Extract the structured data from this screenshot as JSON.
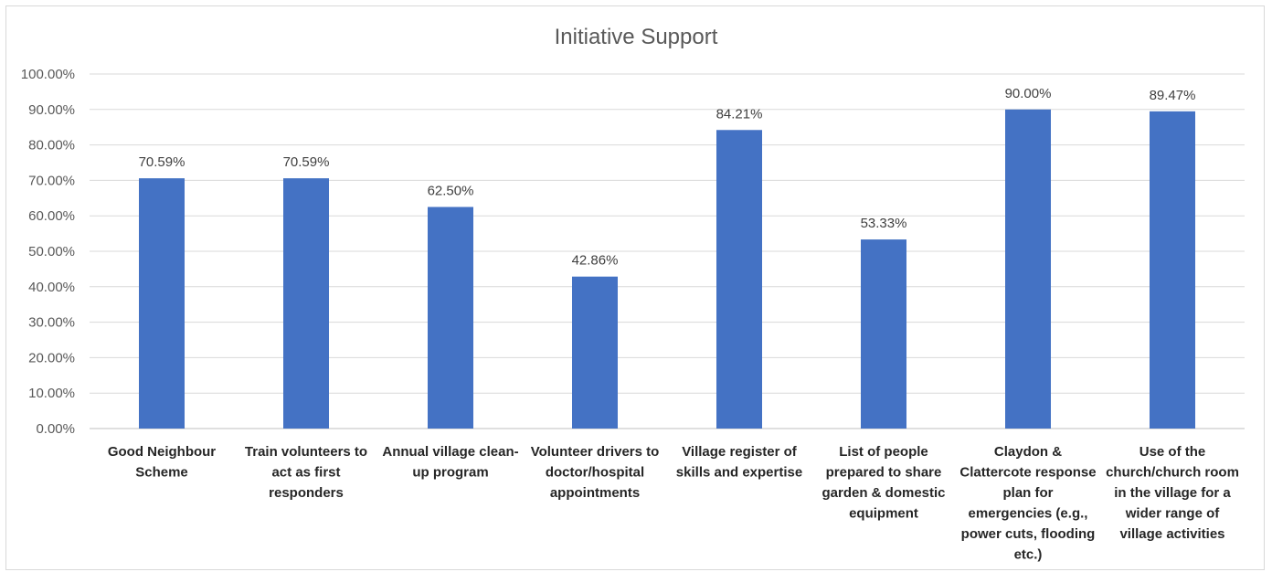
{
  "chart_data": {
    "type": "bar",
    "title": "Initiative Support",
    "xlabel": "",
    "ylabel": "",
    "ylim": [
      0,
      100
    ],
    "ytick_step": 10,
    "ytick_labels": [
      "0.00%",
      "10.00%",
      "20.00%",
      "30.00%",
      "40.00%",
      "50.00%",
      "60.00%",
      "70.00%",
      "80.00%",
      "90.00%",
      "100.00%"
    ],
    "grid": true,
    "legend": "none",
    "bar_color": "#4472c4",
    "categories": [
      [
        "Good Neighbour",
        "Scheme"
      ],
      [
        "Train volunteers to",
        "act as first",
        "responders"
      ],
      [
        "Annual village clean-",
        "up program"
      ],
      [
        "Volunteer drivers to",
        "doctor/hospital",
        "appointments"
      ],
      [
        "Village register of",
        "skills and expertise"
      ],
      [
        "List of people",
        "prepared to share",
        "garden & domestic",
        "equipment"
      ],
      [
        "Claydon &",
        "Clattercote response",
        "plan for",
        "emergencies (e.g.,",
        "power cuts, flooding",
        "etc.)"
      ],
      [
        "Use of the",
        "church/church room",
        "in the village for a",
        "wider range of",
        "village activities"
      ]
    ],
    "values": [
      70.59,
      70.59,
      62.5,
      42.86,
      84.21,
      53.33,
      90.0,
      89.47
    ],
    "data_labels": [
      "70.59%",
      "70.59%",
      "62.50%",
      "42.86%",
      "84.21%",
      "53.33%",
      "90.00%",
      "89.47%"
    ]
  }
}
